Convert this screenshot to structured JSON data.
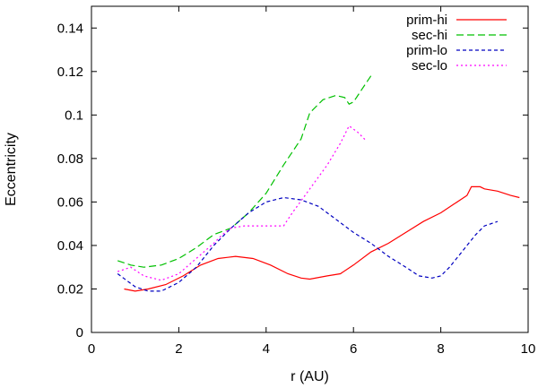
{
  "chart_data": {
    "type": "line",
    "title": "",
    "xlabel": "r (AU)",
    "ylabel": "Eccentricity",
    "xlim": [
      0,
      10
    ],
    "ylim": [
      0,
      0.15
    ],
    "xticks": [
      0,
      2,
      4,
      6,
      8,
      10
    ],
    "xtick_labels": [
      "0",
      "2",
      "4",
      "6",
      "8",
      "10"
    ],
    "yticks": [
      0,
      0.02,
      0.04,
      0.06,
      0.08,
      0.1,
      0.12,
      0.14
    ],
    "ytick_labels": [
      "0",
      "0.02",
      "0.04",
      "0.06",
      "0.08",
      "0.1",
      "0.12",
      "0.14"
    ],
    "legend_position": "top-right",
    "grid": false,
    "series": [
      {
        "name": "prim-hi",
        "color": "#ff0000",
        "dash": "solid",
        "x": [
          0.75,
          1.0,
          1.3,
          1.7,
          2.1,
          2.5,
          2.9,
          3.3,
          3.7,
          4.1,
          4.5,
          4.8,
          5.0,
          5.4,
          5.7,
          6.0,
          6.4,
          6.8,
          7.2,
          7.6,
          8.0,
          8.3,
          8.6,
          8.7,
          8.9,
          9.0,
          9.3,
          9.6,
          9.8
        ],
        "y": [
          0.02,
          0.019,
          0.02,
          0.022,
          0.026,
          0.031,
          0.034,
          0.035,
          0.034,
          0.031,
          0.027,
          0.025,
          0.0245,
          0.026,
          0.027,
          0.031,
          0.037,
          0.041,
          0.046,
          0.051,
          0.055,
          0.059,
          0.063,
          0.067,
          0.067,
          0.066,
          0.065,
          0.063,
          0.062
        ]
      },
      {
        "name": "sec-hi",
        "color": "#00c000",
        "dash": "8,4",
        "x": [
          0.6,
          0.9,
          1.2,
          1.6,
          2.0,
          2.4,
          2.8,
          3.2,
          3.6,
          4.0,
          4.4,
          4.8,
          5.0,
          5.3,
          5.6,
          5.8,
          5.9,
          6.0,
          6.1,
          6.2,
          6.4
        ],
        "y": [
          0.033,
          0.031,
          0.03,
          0.031,
          0.034,
          0.039,
          0.045,
          0.048,
          0.055,
          0.064,
          0.077,
          0.089,
          0.101,
          0.107,
          0.109,
          0.108,
          0.105,
          0.106,
          0.109,
          0.112,
          0.118
        ]
      },
      {
        "name": "prim-lo",
        "color": "#0000c0",
        "dash": "4,3",
        "x": [
          0.6,
          0.8,
          1.0,
          1.3,
          1.6,
          2.0,
          2.4,
          2.8,
          3.2,
          3.6,
          4.0,
          4.4,
          4.8,
          5.2,
          5.6,
          6.0,
          6.4,
          6.8,
          7.2,
          7.5,
          7.8,
          8.0,
          8.2,
          8.4,
          8.6,
          8.8,
          9.0,
          9.3
        ],
        "y": [
          0.027,
          0.024,
          0.021,
          0.019,
          0.019,
          0.023,
          0.03,
          0.04,
          0.048,
          0.055,
          0.06,
          0.062,
          0.061,
          0.058,
          0.052,
          0.046,
          0.041,
          0.035,
          0.03,
          0.026,
          0.025,
          0.026,
          0.03,
          0.035,
          0.04,
          0.045,
          0.049,
          0.051
        ]
      },
      {
        "name": "sec-lo",
        "color": "#ff00ff",
        "dash": "2,3",
        "x": [
          0.6,
          0.9,
          1.2,
          1.6,
          2.0,
          2.4,
          2.8,
          3.0,
          3.2,
          3.5,
          3.8,
          4.1,
          4.4,
          4.6,
          5.0,
          5.4,
          5.7,
          5.9,
          6.1,
          6.3
        ],
        "y": [
          0.028,
          0.03,
          0.026,
          0.024,
          0.027,
          0.034,
          0.041,
          0.045,
          0.048,
          0.049,
          0.049,
          0.049,
          0.049,
          0.055,
          0.066,
          0.077,
          0.087,
          0.095,
          0.092,
          0.088
        ]
      }
    ]
  }
}
